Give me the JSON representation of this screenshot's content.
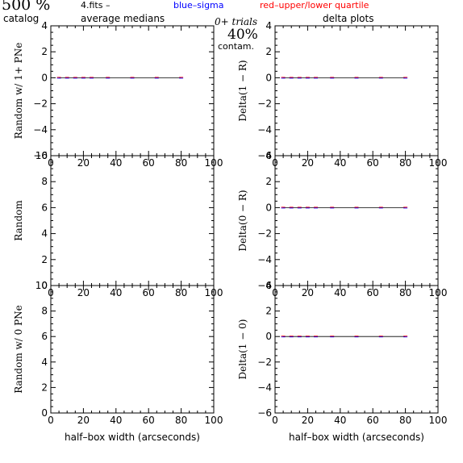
{
  "header": {
    "percent_label": "500 %",
    "catalog_label": "catalog",
    "file_label": "4.fits  –",
    "average_label": "average medians",
    "sigma_label": "blue–sigma",
    "quartile_label": "red–upper/lower quartile",
    "trials_label": "0+ trials",
    "contam_value": "40%",
    "contam_label": "contam.",
    "delta_label": "delta plots"
  },
  "colors": {
    "axis": "#000000",
    "median": "#000000",
    "sigma": "#0000ff",
    "quartile": "#ff0000"
  },
  "chart_data": [
    {
      "id": "random-1plus",
      "type": "line",
      "xlabel": "",
      "ylabel": "Random w/ 1+ PNe",
      "xlim": [
        0,
        100
      ],
      "ylim": [
        -6,
        4
      ],
      "xticks": [
        "0",
        "20",
        "40",
        "60",
        "80",
        "100"
      ],
      "yticks": [
        "-6",
        "-4",
        "-2",
        "0",
        "2",
        "4"
      ],
      "series": [
        {
          "x": [
            5,
            10,
            15,
            20,
            25,
            35,
            50,
            65,
            80
          ],
          "y": [
            0,
            0,
            0,
            0,
            0,
            0,
            0,
            0,
            0
          ]
        }
      ]
    },
    {
      "id": "delta-1-r",
      "type": "line",
      "xlabel": "",
      "ylabel": "Delta(1 − R)",
      "xlim": [
        0,
        100
      ],
      "ylim": [
        -6,
        4
      ],
      "xticks": [
        "0",
        "20",
        "40",
        "60",
        "80",
        "100"
      ],
      "yticks": [
        "-6",
        "-4",
        "-2",
        "0",
        "2",
        "4"
      ],
      "series": [
        {
          "x": [
            5,
            10,
            15,
            20,
            25,
            35,
            50,
            65,
            80
          ],
          "y": [
            0,
            0,
            0,
            0,
            0,
            0,
            0,
            0,
            0
          ]
        }
      ]
    },
    {
      "id": "random",
      "type": "line",
      "xlabel": "",
      "ylabel": "Random",
      "xlim": [
        0,
        100
      ],
      "ylim": [
        0,
        10
      ],
      "xticks": [
        "0",
        "20",
        "40",
        "60",
        "80",
        "100"
      ],
      "yticks": [
        "0",
        "2",
        "4",
        "6",
        "8",
        "10"
      ],
      "series": []
    },
    {
      "id": "delta-0-r",
      "type": "line",
      "xlabel": "",
      "ylabel": "Delta(0 − R)",
      "xlim": [
        0,
        100
      ],
      "ylim": [
        -6,
        4
      ],
      "xticks": [
        "0",
        "20",
        "40",
        "60",
        "80",
        "100"
      ],
      "yticks": [
        "-6",
        "-4",
        "-2",
        "0",
        "2",
        "4"
      ],
      "series": [
        {
          "x": [
            5,
            10,
            15,
            20,
            25,
            35,
            50,
            65,
            80
          ],
          "y": [
            0,
            0,
            0,
            0,
            0,
            0,
            0,
            0,
            0
          ]
        }
      ]
    },
    {
      "id": "random-0",
      "type": "line",
      "xlabel": "half–box width (arcseconds)",
      "ylabel": "Random w/ 0 PNe",
      "xlim": [
        0,
        100
      ],
      "ylim": [
        0,
        10
      ],
      "xticks": [
        "0",
        "20",
        "40",
        "60",
        "80",
        "100"
      ],
      "yticks": [
        "0",
        "2",
        "4",
        "6",
        "8",
        "10"
      ],
      "series": []
    },
    {
      "id": "delta-1-0",
      "type": "line",
      "xlabel": "half–box width (arcseconds)",
      "ylabel": "Delta(1 − 0)",
      "xlim": [
        0,
        100
      ],
      "ylim": [
        -6,
        4
      ],
      "xticks": [
        "0",
        "20",
        "40",
        "60",
        "80",
        "100"
      ],
      "yticks": [
        "-6",
        "-4",
        "-2",
        "0",
        "2",
        "4"
      ],
      "series": [
        {
          "x": [
            5,
            10,
            15,
            20,
            25,
            35,
            50,
            65,
            80
          ],
          "y": [
            0,
            0,
            0,
            0,
            0,
            0,
            0,
            0,
            0
          ]
        }
      ]
    }
  ]
}
